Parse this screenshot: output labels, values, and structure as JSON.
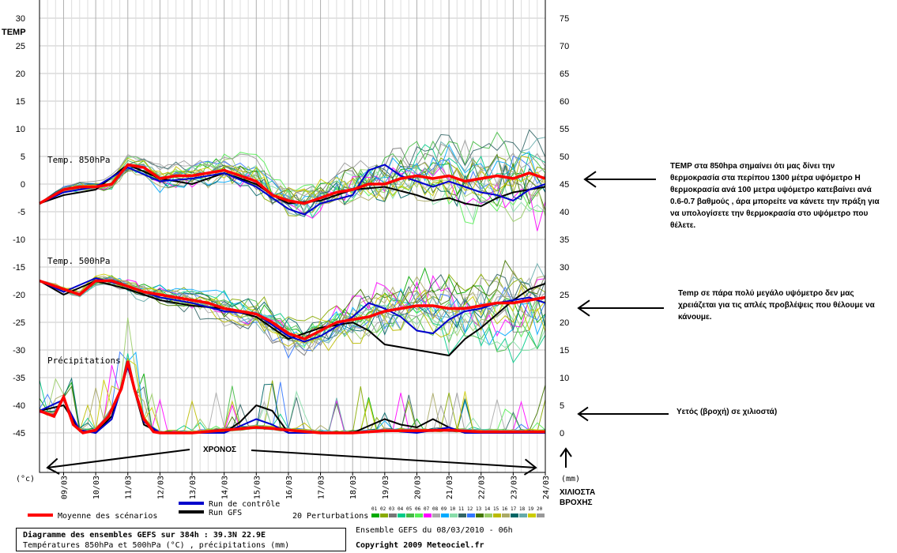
{
  "chart_data": {
    "type": "line",
    "left_axis": {
      "label": "TEMP",
      "unit": "(°c)",
      "ticks": [
        30,
        25,
        20,
        15,
        10,
        5,
        0,
        -5,
        -10,
        -15,
        -20,
        -25,
        -30,
        -35,
        -40,
        -45
      ]
    },
    "right_axis": {
      "unit": "(mm)",
      "ticks": [
        75,
        70,
        65,
        60,
        55,
        50,
        45,
        40,
        35,
        30,
        25,
        20,
        15,
        10,
        5,
        0
      ]
    },
    "x_dates": [
      "09/03",
      "10/03",
      "11/03",
      "12/03",
      "13/03",
      "14/03",
      "15/03",
      "16/03",
      "17/03",
      "18/03",
      "19/03",
      "20/03",
      "21/03",
      "22/03",
      "23/03",
      "24/03"
    ],
    "x_range_days": [
      8.25,
      24
    ],
    "grid": true,
    "sections": [
      {
        "label": "Temp. 850hPa",
        "mean": [
          [
            8.25,
            -3.5
          ],
          [
            9,
            -1
          ],
          [
            9.5,
            -0.5
          ],
          [
            10,
            -0.5
          ],
          [
            10.5,
            0
          ],
          [
            11,
            3.5
          ],
          [
            11.5,
            3
          ],
          [
            12,
            1
          ],
          [
            12.5,
            1.5
          ],
          [
            13,
            1.5
          ],
          [
            13.5,
            2
          ],
          [
            14,
            2.5
          ],
          [
            14.5,
            1.5
          ],
          [
            15,
            0.5
          ],
          [
            15.5,
            -2
          ],
          [
            16,
            -3
          ],
          [
            16.5,
            -3.5
          ],
          [
            17,
            -2.5
          ],
          [
            17.5,
            -1.5
          ],
          [
            18,
            -1
          ],
          [
            18.5,
            0
          ],
          [
            19,
            0
          ],
          [
            19.5,
            1
          ],
          [
            20,
            1.5
          ],
          [
            20.5,
            1
          ],
          [
            21,
            1.5
          ],
          [
            21.5,
            0.5
          ],
          [
            22,
            1
          ],
          [
            22.5,
            1.5
          ],
          [
            23,
            1
          ],
          [
            23.5,
            2
          ],
          [
            24,
            1
          ]
        ],
        "control": [
          [
            8.25,
            -3.5
          ],
          [
            9,
            -1.5
          ],
          [
            10,
            -0.5
          ],
          [
            11,
            3
          ],
          [
            12,
            0.5
          ],
          [
            13,
            1
          ],
          [
            14,
            2
          ],
          [
            15,
            -0.5
          ],
          [
            15.5,
            -2.5
          ],
          [
            16,
            -4.5
          ],
          [
            16.5,
            -5.5
          ],
          [
            17,
            -3.5
          ],
          [
            18,
            -2
          ],
          [
            18.5,
            2.5
          ],
          [
            19,
            3.5
          ],
          [
            19.5,
            1.5
          ],
          [
            20,
            0.5
          ],
          [
            20.5,
            -0.5
          ],
          [
            21,
            0.5
          ],
          [
            21.5,
            -0.5
          ],
          [
            22,
            -1.5
          ],
          [
            22.5,
            -2
          ],
          [
            23,
            -3
          ],
          [
            23.5,
            -1
          ],
          [
            24,
            0
          ]
        ],
        "gfs": [
          [
            8.25,
            -3.5
          ],
          [
            9,
            -2
          ],
          [
            10,
            -1
          ],
          [
            11,
            3.5
          ],
          [
            12,
            1
          ],
          [
            13,
            0
          ],
          [
            14,
            2
          ],
          [
            15,
            0
          ],
          [
            15.5,
            -2
          ],
          [
            16,
            -3.5
          ],
          [
            17,
            -3
          ],
          [
            18,
            -1
          ],
          [
            19,
            -0.5
          ],
          [
            20,
            -2
          ],
          [
            20.5,
            -3
          ],
          [
            21,
            -2.5
          ],
          [
            21.5,
            -3.5
          ],
          [
            22,
            -4
          ],
          [
            22.5,
            -2.5
          ],
          [
            23,
            -1.5
          ],
          [
            24,
            -0.5
          ]
        ]
      },
      {
        "label": "Temp. 500hPa",
        "mean": [
          [
            8.25,
            -17.5
          ],
          [
            9,
            -19
          ],
          [
            9.5,
            -20
          ],
          [
            10,
            -17.5
          ],
          [
            10.5,
            -17.5
          ],
          [
            11,
            -18.5
          ],
          [
            11.5,
            -19.5
          ],
          [
            12,
            -20
          ],
          [
            12.5,
            -20.5
          ],
          [
            13,
            -21
          ],
          [
            13.5,
            -21.5
          ],
          [
            14,
            -22.5
          ],
          [
            14.5,
            -23
          ],
          [
            15,
            -23.5
          ],
          [
            15.5,
            -25
          ],
          [
            16,
            -27
          ],
          [
            16.5,
            -28
          ],
          [
            17,
            -26.5
          ],
          [
            17.5,
            -25
          ],
          [
            18,
            -24.5
          ],
          [
            18.5,
            -24
          ],
          [
            19,
            -23
          ],
          [
            19.5,
            -22.5
          ],
          [
            20,
            -22
          ],
          [
            20.5,
            -22
          ],
          [
            21,
            -22.5
          ],
          [
            21.5,
            -22.5
          ],
          [
            22,
            -22
          ],
          [
            22.5,
            -21.5
          ],
          [
            23,
            -21.5
          ],
          [
            23.5,
            -21
          ],
          [
            24,
            -20.5
          ]
        ],
        "control": [
          [
            8.25,
            -17.5
          ],
          [
            9,
            -19.5
          ],
          [
            10,
            -17
          ],
          [
            11,
            -18.5
          ],
          [
            12,
            -20.5
          ],
          [
            13,
            -21.5
          ],
          [
            14,
            -23
          ],
          [
            15,
            -23.5
          ],
          [
            16,
            -27.5
          ],
          [
            16.5,
            -28.5
          ],
          [
            17,
            -27.5
          ],
          [
            18,
            -24
          ],
          [
            18.5,
            -21.5
          ],
          [
            19,
            -22.5
          ],
          [
            19.5,
            -24
          ],
          [
            20,
            -26.5
          ],
          [
            20.5,
            -27
          ],
          [
            21,
            -24.5
          ],
          [
            21.5,
            -23
          ],
          [
            22,
            -22.5
          ],
          [
            22.5,
            -21.5
          ],
          [
            23,
            -21
          ],
          [
            23.5,
            -20.5
          ],
          [
            24,
            -21.5
          ]
        ],
        "gfs": [
          [
            8.25,
            -17.5
          ],
          [
            9,
            -20
          ],
          [
            10,
            -17.5
          ],
          [
            11,
            -19
          ],
          [
            12,
            -21
          ],
          [
            13,
            -22
          ],
          [
            14,
            -22.5
          ],
          [
            15,
            -24
          ],
          [
            16,
            -28
          ],
          [
            17,
            -26
          ],
          [
            18,
            -25
          ],
          [
            18.5,
            -26.5
          ],
          [
            19,
            -29
          ],
          [
            20,
            -30
          ],
          [
            20.5,
            -30.5
          ],
          [
            21,
            -31
          ],
          [
            21.5,
            -28
          ],
          [
            22,
            -26
          ],
          [
            22.5,
            -23.5
          ],
          [
            23,
            -21
          ],
          [
            23.5,
            -19
          ],
          [
            24,
            -18
          ]
        ]
      },
      {
        "label": "Précipitations",
        "mean": [
          [
            8.25,
            -41
          ],
          [
            8.7,
            -42
          ],
          [
            9,
            -38.5
          ],
          [
            9.3,
            -43.5
          ],
          [
            9.6,
            -45
          ],
          [
            10,
            -44.5
          ],
          [
            10.4,
            -42
          ],
          [
            10.8,
            -37
          ],
          [
            11,
            -32
          ],
          [
            11.2,
            -37
          ],
          [
            11.5,
            -42.5
          ],
          [
            11.8,
            -44.8
          ],
          [
            12,
            -45
          ],
          [
            13,
            -45
          ],
          [
            14,
            -44.5
          ],
          [
            15,
            -44
          ],
          [
            15.5,
            -44.2
          ],
          [
            16,
            -44.5
          ],
          [
            17,
            -45
          ],
          [
            18,
            -45
          ],
          [
            19,
            -44.6
          ],
          [
            20,
            -44.6
          ],
          [
            21,
            -44.5
          ],
          [
            22,
            -44.8
          ],
          [
            23,
            -44.8
          ],
          [
            24,
            -44.8
          ]
        ],
        "control": [
          [
            8.25,
            -41
          ],
          [
            9,
            -39
          ],
          [
            9.5,
            -44.5
          ],
          [
            10,
            -45
          ],
          [
            10.5,
            -42.5
          ],
          [
            11,
            -33
          ],
          [
            11.5,
            -43
          ],
          [
            12,
            -45
          ],
          [
            14,
            -45
          ],
          [
            15,
            -42.5
          ],
          [
            15.5,
            -43.5
          ],
          [
            16,
            -45
          ],
          [
            17,
            -45
          ],
          [
            18,
            -45
          ],
          [
            19,
            -44.5
          ],
          [
            20,
            -45
          ],
          [
            21,
            -44
          ],
          [
            21.5,
            -45
          ],
          [
            24,
            -45
          ]
        ],
        "gfs": [
          [
            8.25,
            -41
          ],
          [
            9,
            -40
          ],
          [
            9.5,
            -44.5
          ],
          [
            10,
            -45
          ],
          [
            10.5,
            -42
          ],
          [
            11,
            -33
          ],
          [
            11.5,
            -43.5
          ],
          [
            12,
            -45
          ],
          [
            14,
            -45
          ],
          [
            14.5,
            -43
          ],
          [
            15,
            -40
          ],
          [
            15.5,
            -41
          ],
          [
            16,
            -45
          ],
          [
            18,
            -45
          ],
          [
            19,
            -42.5
          ],
          [
            19.5,
            -43.5
          ],
          [
            20,
            -44
          ],
          [
            20.5,
            -42.5
          ],
          [
            21,
            -44
          ],
          [
            21.5,
            -45
          ],
          [
            24,
            -45
          ]
        ]
      }
    ],
    "legend": {
      "mean": "Moyenne des scénarios",
      "control": "Run de contrôle",
      "gfs": "Run GFS",
      "perturbations": "20 Perturbations",
      "perturbation_ids": [
        "01",
        "02",
        "03",
        "04",
        "05",
        "06",
        "07",
        "08",
        "09",
        "10",
        "11",
        "12",
        "13",
        "14",
        "15",
        "16",
        "17",
        "18",
        "19",
        "20"
      ]
    },
    "colors": {
      "mean": "#ff0000",
      "control": "#0000cc",
      "gfs": "#000000",
      "perturbations": [
        "#00aa00",
        "#88aa00",
        "#777777",
        "#00cc88",
        "#44bb44",
        "#55ee55",
        "#ff00ff",
        "#aaaaaa",
        "#00aaff",
        "#88ddaa",
        "#336666",
        "#3377ff",
        "#447700",
        "#99cc66",
        "#bbbb00",
        "#aaaa66",
        "#006666",
        "#66aaaa",
        "#cccc00",
        "#999999"
      ]
    }
  },
  "footer": {
    "title_line1": "Diagramme des ensembles GEFS sur 384h : 39.3N 22.9E",
    "title_line2": "Températures 850hPa et 500hPa (°C) , précipitations (mm)",
    "run_info": "Ensemble GEFS du 08/03/2010 - 06h",
    "copyright": "Copyright 2009 Meteociel.fr"
  },
  "annotations": {
    "time_label": "ΧΡΟΝΟΣ",
    "precip_axis_label": "ΧΙΛΙΟΣΤΑ\nΒΡΟΧΗΣ",
    "note_850": "TEMP στα 850hpa σημαίνει ότι μας δίνει την θερμοκρασία στα περίπου  1300 μέτρα υψόμετρο Η θερμοκρασία ανά 100 μετρα υψόμετρο κατεβαίνει ανά 0.6-0.7 βαθμούς , άρα μπορείτε να κάνετε την πράξη για να υπολογίσετε την θερμοκρασία στο υψόμετρο που θέλετε.",
    "note_500": "Temp σε πάρα πολύ μεγάλο υψόμετρο δεν μας χρειάζεται για τις απλές προβλέψεις που θέλουμε να κάνουμε.",
    "note_precip": "Υετός (βροχή)  σε χιλιοστά)"
  }
}
